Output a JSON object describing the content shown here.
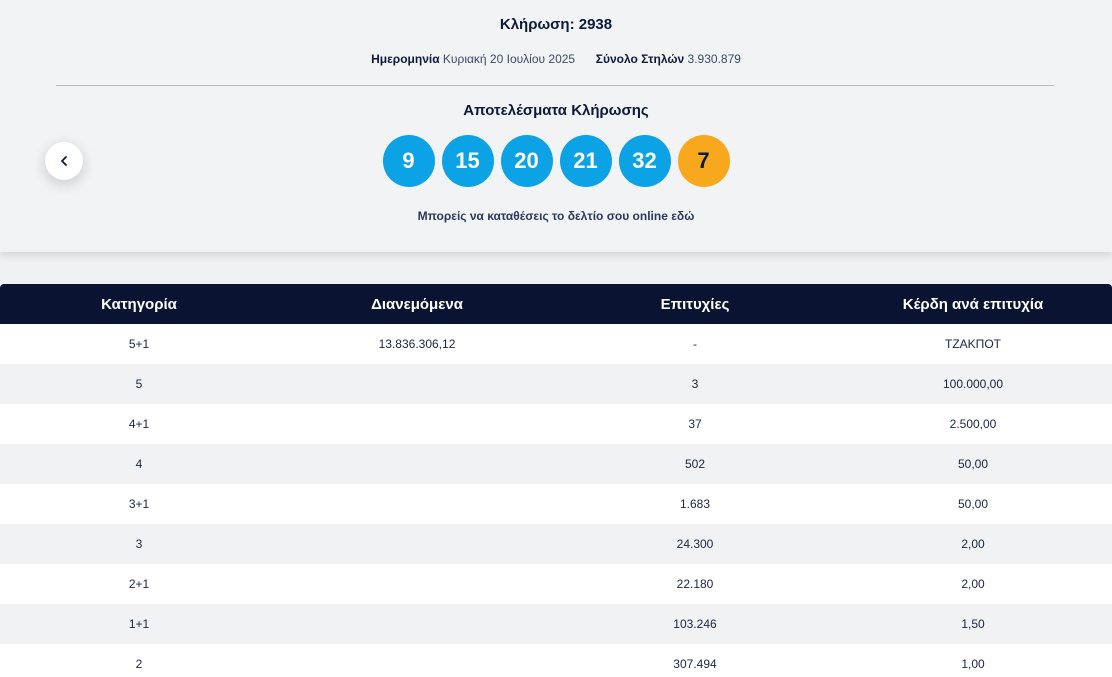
{
  "draw": {
    "title": "Κλήρωση: 2938",
    "date_label": "Ημερομηνία",
    "date_value": "Κυριακή 20 Ιουλίου 2025",
    "columns_label": "Σύνολο Στηλών",
    "columns_value": "3.930.879",
    "results_title": "Αποτελέσματα Κλήρωσης",
    "numbers": [
      "9",
      "15",
      "20",
      "21",
      "32"
    ],
    "bonus": "7",
    "online_text": "Μπορείς να καταθέσεις το δελτίο σου online εδώ",
    "prev_icon": "chevron-left-icon"
  },
  "colors": {
    "ball": "#0ba3e6",
    "bonus_ball": "#f8a81c",
    "table_header": "#0a1432"
  },
  "table": {
    "headers": [
      "Κατηγορία",
      "Διανεμόμενα",
      "Επιτυχίες",
      "Κέρδη ανά επιτυχία"
    ],
    "rows": [
      [
        "5+1",
        "13.836.306,12",
        "-",
        "ΤΖΑΚΠΟΤ"
      ],
      [
        "5",
        "",
        "3",
        "100.000,00"
      ],
      [
        "4+1",
        "",
        "37",
        "2.500,00"
      ],
      [
        "4",
        "",
        "502",
        "50,00"
      ],
      [
        "3+1",
        "",
        "1.683",
        "50,00"
      ],
      [
        "3",
        "",
        "24.300",
        "2,00"
      ],
      [
        "2+1",
        "",
        "22.180",
        "2,00"
      ],
      [
        "1+1",
        "",
        "103.246",
        "1,50"
      ],
      [
        "2",
        "",
        "307.494",
        "1,00"
      ]
    ]
  }
}
